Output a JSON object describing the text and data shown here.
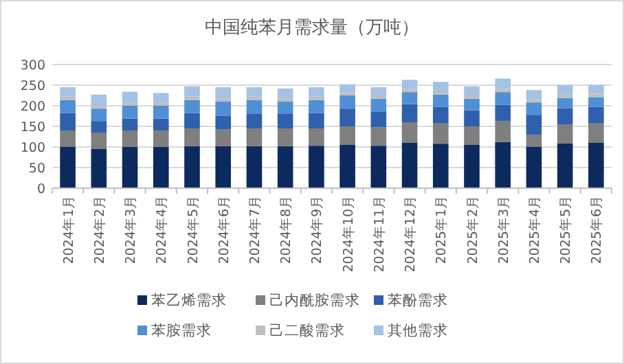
{
  "chart_data": {
    "type": "bar",
    "title": "中国纯苯月需求量（万吨）",
    "stacked": true,
    "grid": "y",
    "legend": "bottom",
    "categories": [
      "2024年1月",
      "2024年2月",
      "2024年3月",
      "2024年4月",
      "2024年5月",
      "2024年6月",
      "2024年7月",
      "2024年8月",
      "2024年9月",
      "2024年10月",
      "2024年11月",
      "2024年12月",
      "2025年1月",
      "2025年2月",
      "2025年3月",
      "2025年4月",
      "2025年5月",
      "2025年6月"
    ],
    "ylim": [
      0,
      300
    ],
    "yticks": [
      0,
      50,
      100,
      150,
      200,
      250,
      300
    ],
    "series": [
      {
        "name": "苯乙烯需求",
        "color": "#0c2a5e",
        "values": [
          101,
          95,
          100,
          100,
          102,
          102,
          102,
          102,
          103,
          105,
          103,
          110,
          108,
          105,
          112,
          101,
          109,
          111
        ]
      },
      {
        "name": "己内酰胺需求",
        "color": "#7f7f7f",
        "values": [
          39,
          40,
          40,
          40,
          43,
          41,
          43,
          43,
          42,
          45,
          45,
          50,
          49,
          45,
          51,
          28,
          46,
          46
        ]
      },
      {
        "name": "苯酚需求",
        "color": "#2f5fad",
        "values": [
          42,
          28,
          29,
          29,
          37,
          33,
          35,
          35,
          37,
          43,
          37,
          44,
          40,
          39,
          39,
          49,
          39,
          40
        ]
      },
      {
        "name": "苯胺需求",
        "color": "#4f8fd4",
        "values": [
          32,
          30,
          31,
          31,
          32,
          34,
          34,
          30,
          32,
          32,
          32,
          29,
          30,
          28,
          31,
          30,
          25,
          24
        ]
      },
      {
        "name": "己二酸需求",
        "color": "#bfbfbf",
        "values": [
          8,
          8,
          8,
          8,
          8,
          8,
          8,
          8,
          8,
          8,
          8,
          8,
          8,
          8,
          8,
          8,
          8,
          8
        ]
      },
      {
        "name": "其他需求",
        "color": "#a4c2e4",
        "values": [
          23,
          26,
          26,
          23,
          25,
          27,
          23,
          24,
          23,
          19,
          20,
          22,
          23,
          22,
          25,
          22,
          23,
          21
        ]
      }
    ]
  }
}
